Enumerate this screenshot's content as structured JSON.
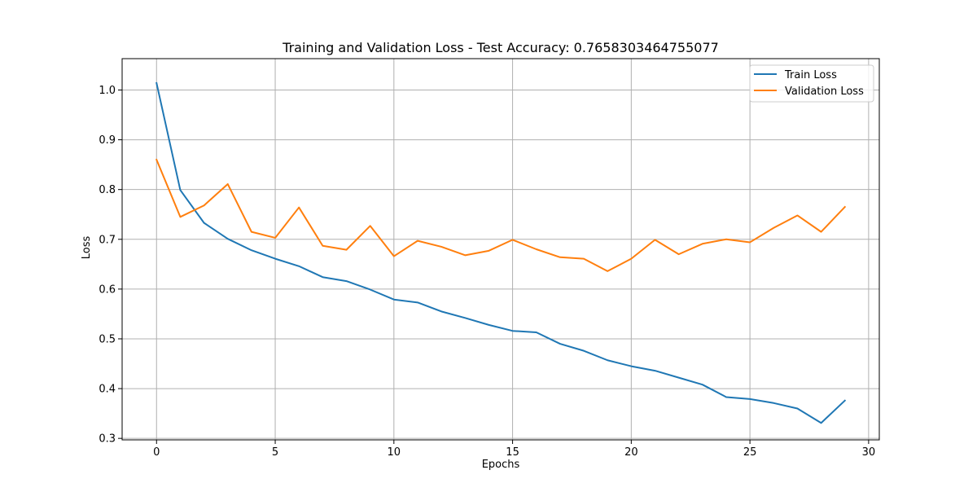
{
  "chart_data": {
    "type": "line",
    "title": "Training and Validation Loss - Test Accuracy: 0.7658303464755077",
    "xlabel": "Epochs",
    "ylabel": "Loss",
    "xlim": [
      -1.45,
      30.45
    ],
    "ylim": [
      0.297,
      1.063
    ],
    "xticks": [
      0,
      5,
      10,
      15,
      20,
      25,
      30
    ],
    "xtick_labels": [
      "0",
      "5",
      "10",
      "15",
      "20",
      "25",
      "30"
    ],
    "yticks": [
      0.3,
      0.4,
      0.5,
      0.6,
      0.7,
      0.8,
      0.9,
      1.0
    ],
    "ytick_labels": [
      "0.3",
      "0.4",
      "0.5",
      "0.6",
      "0.7",
      "0.8",
      "0.9",
      "1.0"
    ],
    "grid": true,
    "legend_position": "top-right",
    "x": [
      0,
      1,
      2,
      3,
      4,
      5,
      6,
      7,
      8,
      9,
      10,
      11,
      12,
      13,
      14,
      15,
      16,
      17,
      18,
      19,
      20,
      21,
      22,
      23,
      24,
      25,
      26,
      27,
      28,
      29
    ],
    "series": [
      {
        "name": "Train Loss",
        "color": "#1f77b4",
        "values": [
          1.014,
          0.799,
          0.733,
          0.701,
          0.678,
          0.661,
          0.646,
          0.624,
          0.616,
          0.599,
          0.579,
          0.573,
          0.555,
          0.542,
          0.528,
          0.516,
          0.513,
          0.49,
          0.476,
          0.457,
          0.445,
          0.436,
          0.422,
          0.408,
          0.383,
          0.379,
          0.371,
          0.36,
          0.331,
          0.376
        ]
      },
      {
        "name": "Validation Loss",
        "color": "#ff7f0e",
        "values": [
          0.86,
          0.745,
          0.768,
          0.811,
          0.715,
          0.703,
          0.764,
          0.687,
          0.679,
          0.727,
          0.666,
          0.697,
          0.685,
          0.668,
          0.677,
          0.699,
          0.68,
          0.664,
          0.661,
          0.636,
          0.661,
          0.699,
          0.67,
          0.691,
          0.7,
          0.694,
          0.723,
          0.748,
          0.715,
          0.765
        ]
      }
    ]
  }
}
